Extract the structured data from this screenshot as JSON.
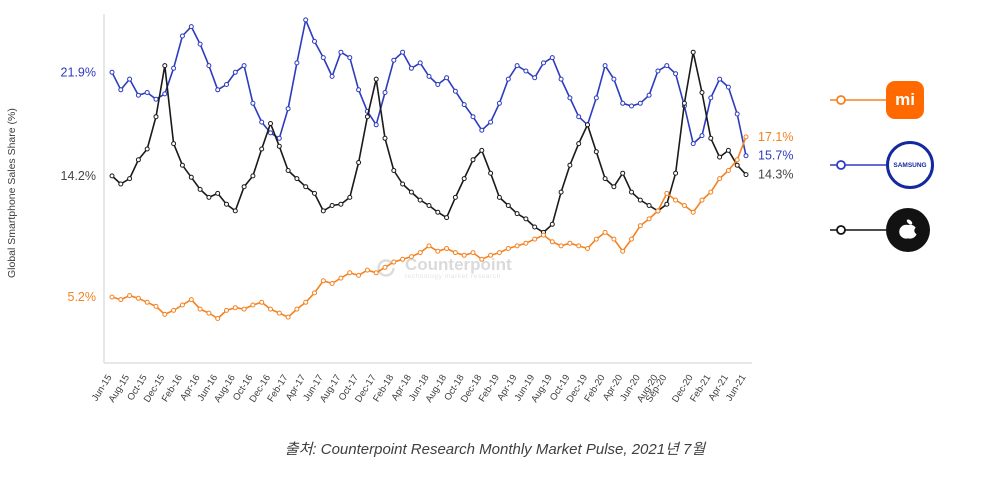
{
  "page": {
    "caption": "출처: Counterpoint Research Monthly Market Pulse, 2021년 7월",
    "watermark": {
      "name": "Counterpoint",
      "tagline": "technology market research"
    }
  },
  "legend": {
    "items": [
      {
        "brand": "Xiaomi",
        "logo_text": "mi"
      },
      {
        "brand": "Samsung",
        "logo_text": "SAMSUNG"
      },
      {
        "brand": "Apple",
        "logo_text": ""
      }
    ]
  },
  "chart_data": {
    "type": "line",
    "title": "",
    "xlabel": "",
    "ylabel": "Global Smartphone Sales Share (%)",
    "ylim": [
      2,
      27
    ],
    "grid": false,
    "legend_position": "right",
    "frequency": "monthly",
    "x_range": [
      "Jun-15",
      "Jun-21"
    ],
    "x_months": [
      "Jun-15",
      "Jul-15",
      "Aug-15",
      "Sep-15",
      "Oct-15",
      "Nov-15",
      "Dec-15",
      "Jan-16",
      "Feb-16",
      "Mar-16",
      "Apr-16",
      "May-16",
      "Jun-16",
      "Jul-16",
      "Aug-16",
      "Sep-16",
      "Oct-16",
      "Nov-16",
      "Dec-16",
      "Jan-17",
      "Feb-17",
      "Mar-17",
      "Apr-17",
      "May-17",
      "Jun-17",
      "Jul-17",
      "Aug-17",
      "Sep-17",
      "Oct-17",
      "Nov-17",
      "Dec-17",
      "Jan-18",
      "Feb-18",
      "Mar-18",
      "Apr-18",
      "May-18",
      "Jun-18",
      "Jul-18",
      "Aug-18",
      "Sep-18",
      "Oct-18",
      "Nov-18",
      "Dec-18",
      "Jan-19",
      "Feb-19",
      "Mar-19",
      "Apr-19",
      "May-19",
      "Jun-19",
      "Jul-19",
      "Aug-19",
      "Sep-19",
      "Oct-19",
      "Nov-19",
      "Dec-19",
      "Jan-20",
      "Feb-20",
      "Mar-20",
      "Apr-20",
      "May-20",
      "Jun-20",
      "Jul-20",
      "Aug-20",
      "Sep-20",
      "Oct-20",
      "Nov-20",
      "Dec-20",
      "Jan-21",
      "Feb-21",
      "Mar-21",
      "Apr-21",
      "May-21",
      "Jun-21"
    ],
    "x_tick_labels": [
      "Jun-15",
      "Aug-15",
      "Oct-15",
      "Dec-15",
      "Feb-16",
      "Apr-16",
      "Jun-16",
      "Aug-16",
      "Oct-16",
      "Dec-16",
      "Feb-17",
      "Apr-17",
      "Jun-17",
      "Aug-17",
      "Oct-17",
      "Dec-17",
      "Feb-18",
      "Apr-18",
      "Jun-18",
      "Aug-18",
      "Oct-18",
      "Dec-18",
      "Feb-19",
      "Apr-19",
      "Jun-19",
      "Aug-19",
      "Oct-19",
      "Dec-19",
      "Feb-20",
      "Apr-20",
      "Jun-20",
      "Aug-20",
      "Sep-20",
      "Dec-20",
      "Feb-21",
      "Apr-21",
      "Jun-21"
    ],
    "x_tick_indices": [
      0,
      2,
      4,
      6,
      8,
      10,
      12,
      14,
      16,
      18,
      20,
      22,
      24,
      26,
      28,
      30,
      32,
      34,
      36,
      38,
      40,
      42,
      44,
      46,
      48,
      50,
      52,
      54,
      56,
      58,
      60,
      62,
      63,
      66,
      68,
      70,
      72
    ],
    "series": [
      {
        "name": "Samsung",
        "color": "#2d3cbe",
        "label_color": "#2d3cbe",
        "start_label": "21.9%",
        "end_label": "15.7%",
        "values": [
          21.9,
          20.6,
          21.4,
          20.2,
          20.4,
          19.9,
          20.3,
          22.2,
          24.6,
          25.3,
          24.0,
          22.4,
          20.6,
          21.0,
          21.9,
          22.4,
          19.6,
          18.2,
          17.4,
          17.0,
          19.2,
          22.6,
          25.8,
          24.2,
          23.0,
          21.6,
          23.4,
          23.0,
          20.6,
          19.0,
          18.0,
          20.4,
          22.8,
          23.4,
          22.2,
          22.6,
          21.6,
          21.0,
          21.5,
          20.5,
          19.5,
          18.6,
          17.6,
          18.2,
          19.6,
          21.4,
          22.4,
          22.0,
          21.5,
          22.6,
          23.0,
          21.4,
          20.0,
          18.6,
          18.0,
          20.0,
          22.4,
          21.4,
          19.6,
          19.4,
          19.6,
          20.2,
          22.0,
          22.4,
          21.8,
          19.4,
          16.6,
          17.2,
          20.0,
          21.4,
          20.8,
          18.8,
          15.7
        ]
      },
      {
        "name": "Apple",
        "color": "#1a1a1a",
        "label_color": "#464646",
        "start_label": "14.2%",
        "end_label": "14.3%",
        "values": [
          14.2,
          13.6,
          14.0,
          15.4,
          16.2,
          18.6,
          22.4,
          16.6,
          15.0,
          14.1,
          13.2,
          12.6,
          12.9,
          12.1,
          11.6,
          13.4,
          14.2,
          16.2,
          18.1,
          16.4,
          14.6,
          14.0,
          13.4,
          12.9,
          11.6,
          12.0,
          12.1,
          12.6,
          15.2,
          18.6,
          21.4,
          17.0,
          14.6,
          13.6,
          13.0,
          12.4,
          12.0,
          11.5,
          11.1,
          12.6,
          14.0,
          15.4,
          16.1,
          14.4,
          12.6,
          12.0,
          11.4,
          11.0,
          10.4,
          10.0,
          10.6,
          13.0,
          15.0,
          16.6,
          18.0,
          16.0,
          14.0,
          13.4,
          14.4,
          13.0,
          12.4,
          12.0,
          11.6,
          12.1,
          14.4,
          19.6,
          23.4,
          20.4,
          17.0,
          15.6,
          16.1,
          15.0,
          14.3
        ]
      },
      {
        "name": "Xiaomi",
        "color": "#f58220",
        "label_color": "#f58220",
        "start_label": "5.2%",
        "end_label": "17.1%",
        "values": [
          5.2,
          5.0,
          5.3,
          5.1,
          4.8,
          4.5,
          3.9,
          4.2,
          4.6,
          5.0,
          4.3,
          4.0,
          3.6,
          4.2,
          4.4,
          4.3,
          4.6,
          4.8,
          4.3,
          4.0,
          3.7,
          4.3,
          4.8,
          5.5,
          6.4,
          6.2,
          6.6,
          7.0,
          6.8,
          7.2,
          7.0,
          7.4,
          7.8,
          8.0,
          8.2,
          8.5,
          9.0,
          8.6,
          8.8,
          8.5,
          8.3,
          8.5,
          8.0,
          8.3,
          8.5,
          8.8,
          9.0,
          9.2,
          9.5,
          9.8,
          9.3,
          9.0,
          9.2,
          9.0,
          8.8,
          9.5,
          10.0,
          9.5,
          8.6,
          9.5,
          10.5,
          11.0,
          11.6,
          12.9,
          12.4,
          12.0,
          11.5,
          12.4,
          13.0,
          14.0,
          14.6,
          15.4,
          17.1
        ]
      }
    ]
  }
}
